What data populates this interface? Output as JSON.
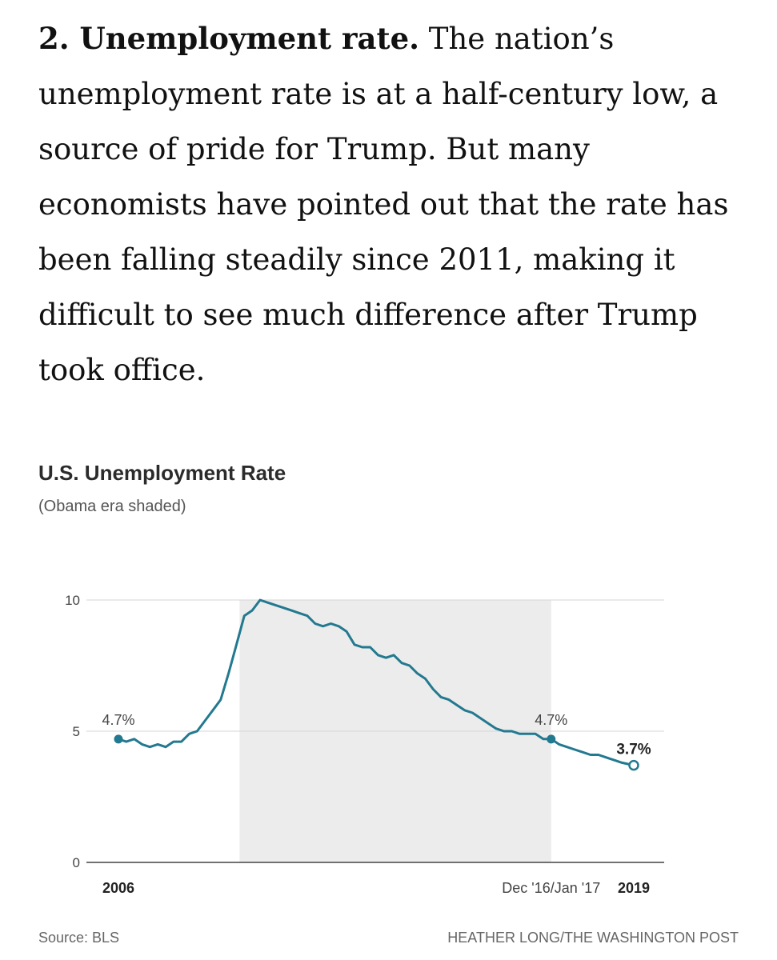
{
  "article": {
    "heading": "2. Unemployment rate.",
    "body": "The nation’s unemployment rate is at a half-century low, a source of pride for Trump. But many economists have pointed out that the rate has been falling steadily since 2011, making it difficult to see much difference after Trump took office."
  },
  "colors": {
    "line": "#23798f",
    "shade": "#ececec",
    "grid": "#d6d6d6",
    "axis": "#444444"
  },
  "chart_data": {
    "type": "line",
    "title": "U.S. Unemployment Rate",
    "subtitle": "(Obama era shaded)",
    "xlabel": "",
    "ylabel": "",
    "ylim": [
      0,
      10
    ],
    "xlim": [
      2006.0,
      2019.1
    ],
    "yticks": [
      {
        "value": 0,
        "label": "0"
      },
      {
        "value": 5,
        "label": "5"
      },
      {
        "value": 10,
        "label": "10"
      }
    ],
    "xticks": [
      {
        "value": 2006.0,
        "label": "2006",
        "bold": true
      },
      {
        "value": 2017.0,
        "label": "Dec '16/Jan '17",
        "bold": false
      },
      {
        "value": 2019.1,
        "label": "2019",
        "bold": true
      }
    ],
    "shaded_region": {
      "label": "Obama era",
      "start": 2009.08,
      "end": 2017.0
    },
    "annotations": [
      {
        "x": 2006.0,
        "y": 4.7,
        "label": "4.7%",
        "marker": "filled",
        "bold": false
      },
      {
        "x": 2017.0,
        "y": 4.7,
        "label": "4.7%",
        "marker": "filled",
        "bold": false
      },
      {
        "x": 2019.1,
        "y": 3.7,
        "label": "3.7%",
        "marker": "hollow",
        "bold": true
      }
    ],
    "series": [
      {
        "name": "Unemployment rate",
        "x": [
          2006.0,
          2006.2,
          2006.4,
          2006.6,
          2006.8,
          2007.0,
          2007.2,
          2007.4,
          2007.6,
          2007.8,
          2008.0,
          2008.2,
          2008.4,
          2008.6,
          2008.8,
          2009.0,
          2009.2,
          2009.4,
          2009.6,
          2009.8,
          2010.0,
          2010.2,
          2010.4,
          2010.6,
          2010.8,
          2011.0,
          2011.2,
          2011.4,
          2011.6,
          2011.8,
          2012.0,
          2012.2,
          2012.4,
          2012.6,
          2012.8,
          2013.0,
          2013.2,
          2013.4,
          2013.6,
          2013.8,
          2014.0,
          2014.2,
          2014.4,
          2014.6,
          2014.8,
          2015.0,
          2015.2,
          2015.4,
          2015.6,
          2015.8,
          2016.0,
          2016.2,
          2016.4,
          2016.6,
          2016.8,
          2017.0,
          2017.2,
          2017.4,
          2017.6,
          2017.8,
          2018.0,
          2018.2,
          2018.4,
          2018.6,
          2018.8,
          2019.1
        ],
        "values": [
          4.7,
          4.6,
          4.7,
          4.5,
          4.4,
          4.5,
          4.4,
          4.6,
          4.6,
          4.9,
          5.0,
          5.4,
          5.8,
          6.2,
          7.2,
          8.3,
          9.4,
          9.6,
          10.0,
          9.9,
          9.8,
          9.7,
          9.6,
          9.5,
          9.4,
          9.1,
          9.0,
          9.1,
          9.0,
          8.8,
          8.3,
          8.2,
          8.2,
          7.9,
          7.8,
          7.9,
          7.6,
          7.5,
          7.2,
          7.0,
          6.6,
          6.3,
          6.2,
          6.0,
          5.8,
          5.7,
          5.5,
          5.3,
          5.1,
          5.0,
          5.0,
          4.9,
          4.9,
          4.9,
          4.7,
          4.7,
          4.5,
          4.4,
          4.3,
          4.2,
          4.1,
          4.1,
          4.0,
          3.9,
          3.8,
          3.7
        ]
      }
    ]
  },
  "footer": {
    "source": "Source: BLS",
    "credit": "HEATHER LONG/THE WASHINGTON POST"
  }
}
